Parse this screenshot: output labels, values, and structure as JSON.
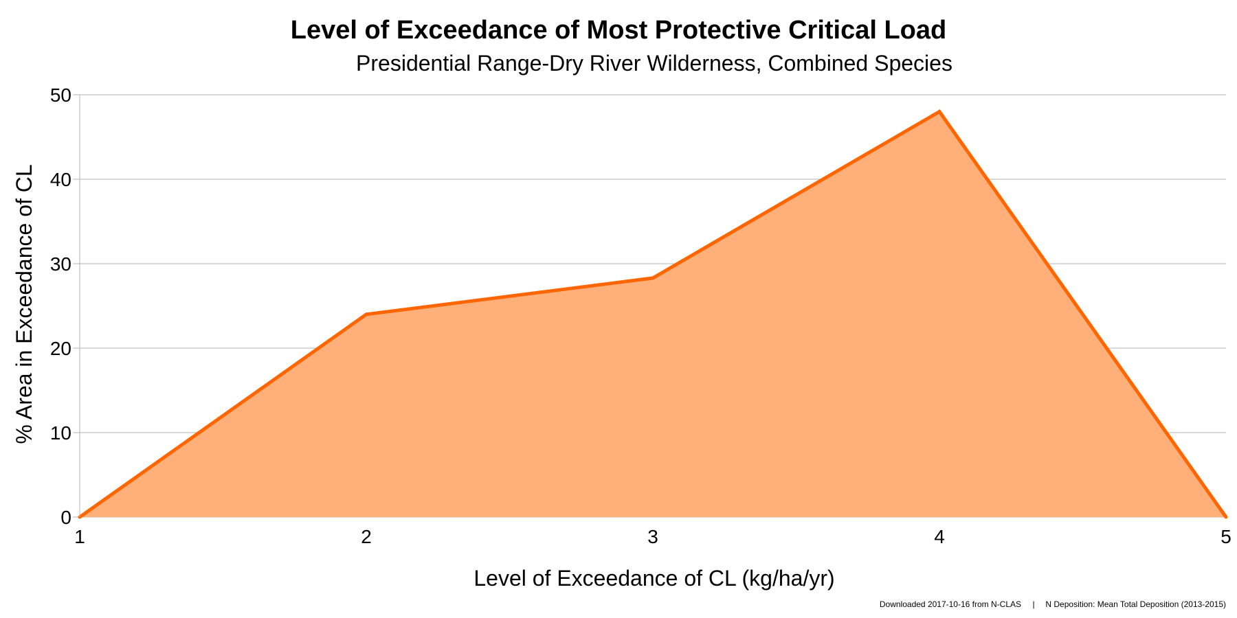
{
  "chart_data": {
    "type": "area",
    "title": "Level of Exceedance of Most Protective Critical Load",
    "subtitle": "Presidential Range-Dry River Wilderness, Combined Species",
    "xlabel": "Level of Exceedance of CL (kg/ha/yr)",
    "ylabel": "% Area in Exceedance of CL",
    "x": [
      1,
      2,
      3,
      4,
      5
    ],
    "series": [
      {
        "values": [
          0,
          24,
          28.3,
          48,
          0
        ],
        "line_color": "#ff6600",
        "fill_color": "#ffaf7a"
      }
    ],
    "xlim": [
      1,
      5
    ],
    "ylim": [
      0,
      50
    ],
    "x_ticks": [
      "1",
      "2",
      "3",
      "4",
      "5"
    ],
    "y_ticks": [
      "0",
      "10",
      "20",
      "30",
      "40",
      "50"
    ],
    "grid": true,
    "legend": "none"
  },
  "footer": {
    "source": "Downloaded 2017-10-16 from N-CLAS",
    "separator": "|",
    "deposition": "N Deposition: Mean Total Deposition (2013-2015)"
  }
}
